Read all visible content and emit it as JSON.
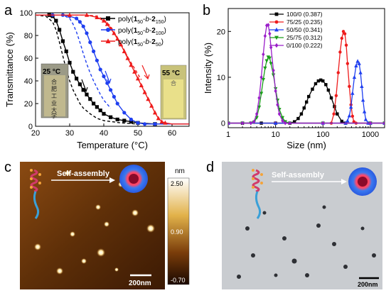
{
  "panel_letters": {
    "a": "a",
    "b": "b",
    "c": "c",
    "d": "d"
  },
  "chart_data": [
    {
      "panel": "a",
      "type": "line",
      "xlabel": "Temperature (°C)",
      "ylabel": "Transmittance (%)",
      "xlim": [
        20,
        65
      ],
      "ylim": [
        0,
        100
      ],
      "xticks": [
        20,
        30,
        40,
        50,
        60
      ],
      "yticks": [
        0,
        20,
        40,
        60,
        80,
        100
      ],
      "legend_position": "top-right",
      "legend": [
        {
          "pre": "poly(",
          "b1": "1",
          "s1": "50",
          "mid": "-",
          "it": "b",
          "mid2": "-",
          "b2": "2",
          "s2": "150",
          "post": ")",
          "color": "#000000",
          "marker": "square"
        },
        {
          "pre": "poly(",
          "b1": "1",
          "s1": "50",
          "mid": "-",
          "it": "b",
          "mid2": "-",
          "b2": "2",
          "s2": "100",
          "post": ")",
          "color": "#1f3ff0",
          "marker": "circle"
        },
        {
          "pre": "poly(",
          "b1": "1",
          "s1": "50",
          "mid": "-",
          "it": "b",
          "mid2": "-",
          "b2": "2",
          "s2": "50",
          "post": ")",
          "color": "#ee1c1c",
          "marker": "triangle"
        }
      ],
      "series": [
        {
          "color": "#000000",
          "marker": "square",
          "style": "solid",
          "x": [
            20,
            22,
            24,
            25,
            26,
            27,
            28,
            29,
            30,
            31,
            32,
            33,
            34,
            35,
            36,
            37,
            38,
            39,
            40,
            42,
            44,
            46,
            48,
            50,
            55,
            60,
            65
          ],
          "y": [
            98,
            98,
            98,
            97,
            93,
            85,
            75,
            66,
            56,
            48,
            42,
            37,
            32,
            28,
            24,
            20,
            17,
            14,
            11,
            8,
            6,
            5,
            4,
            3,
            2,
            2,
            2
          ]
        },
        {
          "color": "#000000",
          "marker": "none",
          "style": "dashed",
          "x": [
            20,
            23,
            25,
            26,
            27,
            28,
            29,
            30,
            31,
            32,
            33,
            34,
            36,
            38,
            40,
            45,
            50
          ],
          "y": [
            98,
            97,
            92,
            85,
            74,
            62,
            50,
            40,
            32,
            26,
            20,
            16,
            11,
            7,
            5,
            3,
            2
          ]
        },
        {
          "color": "#1f3ff0",
          "marker": "circle",
          "style": "solid",
          "x": [
            20,
            25,
            28,
            30,
            32,
            33,
            34,
            35,
            36,
            37,
            38,
            39,
            40,
            41,
            42,
            43,
            44,
            46,
            48,
            50,
            52,
            55,
            60,
            65
          ],
          "y": [
            98,
            98,
            98,
            97,
            95,
            92,
            88,
            82,
            74,
            66,
            58,
            50,
            44,
            38,
            32,
            26,
            20,
            12,
            6,
            3,
            2,
            2,
            2,
            2
          ]
        },
        {
          "color": "#1f3ff0",
          "marker": "none",
          "style": "dashed",
          "x": [
            20,
            28,
            30,
            31,
            32,
            33,
            34,
            35,
            36,
            37,
            38,
            39,
            40,
            42
          ],
          "y": [
            98,
            98,
            95,
            90,
            83,
            74,
            64,
            55,
            47,
            40,
            34,
            28,
            23,
            16
          ]
        },
        {
          "color": "#ee1c1c",
          "marker": "triangle",
          "style": "solid",
          "x": [
            20,
            30,
            35,
            38,
            40,
            41,
            42,
            43,
            44,
            45,
            46,
            47,
            48,
            49,
            50,
            51,
            52,
            53,
            54,
            55,
            56,
            57,
            58,
            60,
            62,
            65
          ],
          "y": [
            98,
            98,
            98,
            96,
            93,
            90,
            86,
            82,
            77,
            72,
            66,
            60,
            54,
            48,
            42,
            36,
            30,
            24,
            18,
            12,
            7,
            4,
            3,
            2,
            2,
            2
          ]
        },
        {
          "color": "#ee1c1c",
          "marker": "none",
          "style": "dashed",
          "x": [
            20,
            35,
            38,
            40,
            41,
            42,
            43,
            44,
            45,
            46,
            47,
            48,
            49,
            50,
            51
          ],
          "y": [
            98,
            98,
            97,
            94,
            91,
            88,
            83,
            78,
            73,
            67,
            61,
            56,
            51,
            46,
            41
          ]
        }
      ],
      "insets": [
        {
          "temp": "25 °C",
          "glyphs": [
            "合",
            "肥",
            "工",
            "业",
            "大",
            "学"
          ]
        },
        {
          "temp": "55 °C",
          "glyphs": [
            "合"
          ]
        }
      ]
    },
    {
      "panel": "b",
      "type": "line",
      "xlabel": "Size (nm)",
      "ylabel": "Intensity (%)",
      "xscale": "log",
      "xlim": [
        1,
        2000
      ],
      "ylim": [
        -1,
        25
      ],
      "xticks": [
        1,
        10,
        100,
        1000
      ],
      "xticklabels": [
        "1",
        "10",
        "100",
        "1000"
      ],
      "yticks": [
        0,
        10,
        20
      ],
      "legend_position": "top-center",
      "series": [
        {
          "name": "100/0 (0.387)",
          "color": "#000000",
          "marker": "square",
          "x": [
            1,
            2,
            5,
            10,
            20,
            25,
            30,
            35,
            40,
            45,
            50,
            60,
            70,
            80,
            90,
            100,
            115,
            130,
            150,
            175,
            200,
            250,
            300,
            1000,
            2000
          ],
          "y": [
            0,
            0,
            0,
            0,
            0,
            0.3,
            1.0,
            2.0,
            3.3,
            4.6,
            5.8,
            7.4,
            8.6,
            9.2,
            9.4,
            9.2,
            8.4,
            7.2,
            5.5,
            3.6,
            2.0,
            0.4,
            0,
            0,
            0
          ]
        },
        {
          "name": "75/25 (0.235)",
          "color": "#ee1c1c",
          "marker": "circle",
          "x": [
            1,
            10,
            100,
            150,
            170,
            190,
            210,
            230,
            250,
            270,
            290,
            310,
            330,
            360,
            390,
            420,
            450,
            500,
            1000,
            2000
          ],
          "y": [
            0,
            0,
            0,
            0,
            2,
            6,
            11,
            15.5,
            18.5,
            20,
            19.5,
            17,
            13,
            8,
            4,
            1.5,
            0.3,
            0,
            0,
            0
          ]
        },
        {
          "name": "50/50 (0.341)",
          "color": "#1f3ff0",
          "marker": "triangle",
          "x": [
            1,
            10,
            100,
            300,
            330,
            360,
            390,
            420,
            460,
            500,
            540,
            580,
            620,
            660,
            700,
            750,
            800,
            900,
            1000,
            2000
          ],
          "y": [
            0,
            0,
            0,
            0,
            0.5,
            1.6,
            3.5,
            6.5,
            10,
            12.5,
            13.5,
            13,
            11,
            8,
            5,
            2.5,
            0.8,
            0,
            0,
            0
          ]
        },
        {
          "name": "25/75 (0.312)",
          "color": "#1a9e1a",
          "marker": "triangle-down",
          "x": [
            1,
            2,
            3,
            3.5,
            4,
            4.5,
            5,
            5.5,
            6,
            6.5,
            7,
            7.5,
            8,
            9,
            10,
            11,
            12,
            14,
            16,
            20,
            100,
            1000,
            2000
          ],
          "y": [
            0,
            0,
            0,
            0.2,
            1.2,
            3.5,
            6.5,
            9.5,
            12,
            13.6,
            14.4,
            14.2,
            13,
            10.5,
            7.5,
            5,
            3,
            1.2,
            0.3,
            0,
            0,
            0,
            0
          ]
        },
        {
          "name": "0/100 (0.222)",
          "color": "#9a1ec9",
          "marker": "diamond",
          "x": [
            1,
            2,
            3,
            3.5,
            4,
            4.5,
            5,
            5.5,
            6,
            6.5,
            7,
            7.5,
            8,
            9,
            10,
            11,
            12,
            14,
            16,
            20,
            100,
            1000,
            2000
          ],
          "y": [
            0,
            0,
            0,
            0.3,
            2,
            5.5,
            10,
            15,
            19,
            21.3,
            21.4,
            19.5,
            16.5,
            11.5,
            7,
            4,
            2,
            0.5,
            0,
            0,
            0,
            0,
            0
          ]
        }
      ]
    }
  ],
  "panel_c": {
    "label": "Self-assembly",
    "scalebar": "200nm",
    "colorbar": {
      "unit": "nm",
      "max": "2.50",
      "mid": "0.90",
      "min": "-0.70"
    }
  },
  "panel_d": {
    "label": "Self-assembly",
    "scalebar": "200nm"
  }
}
